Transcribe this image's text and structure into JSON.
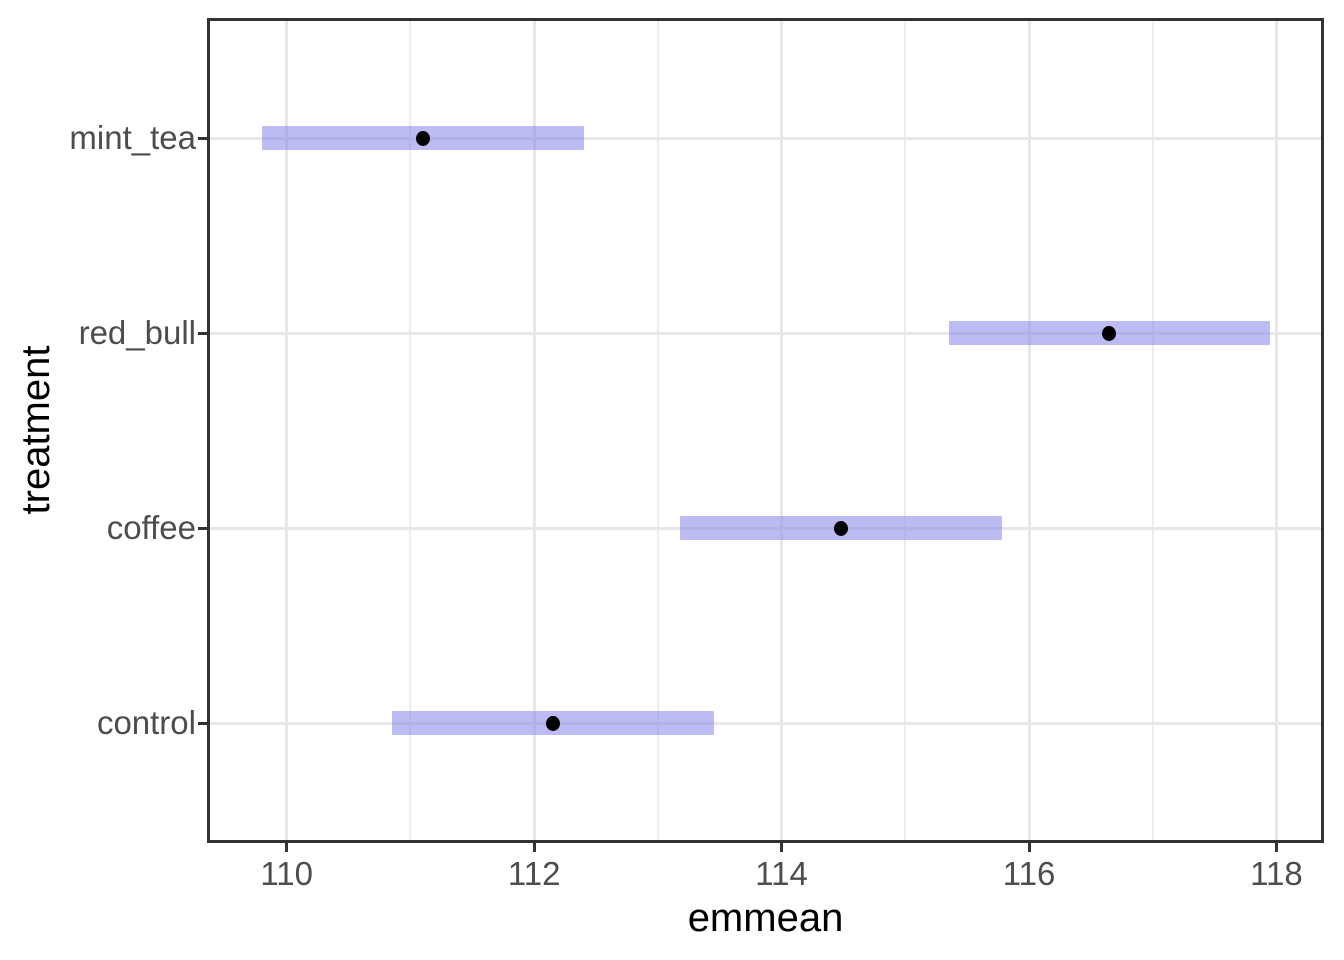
{
  "figure": {
    "background": "#FFFFFF",
    "title": ""
  },
  "colors": {
    "interval_fill": "#8987EB",
    "interval_opacity": 0.57,
    "point_color": "#000000",
    "grid_major": "#E7E7E7",
    "grid_minor": "#EDEDED",
    "panel_border": "#333333",
    "tick_mark": "#333333",
    "tick_label": "#4D4D4D",
    "axis_title": "#000000"
  },
  "chart_data": {
    "type": "interval",
    "subtype": "emmeans-confidence-intervals",
    "orientation": "horizontal",
    "title": "",
    "xlabel": "emmean",
    "ylabel": "treatment",
    "legend": false,
    "grid": true,
    "categories_top_to_bottom": [
      "mint_tea",
      "red_bull",
      "coffee",
      "control"
    ],
    "series": [
      {
        "treatment": "mint_tea",
        "emmean": 111.1,
        "lower_cl": 109.8,
        "upper_cl": 112.4
      },
      {
        "treatment": "red_bull",
        "emmean": 116.65,
        "lower_cl": 115.35,
        "upper_cl": 117.95
      },
      {
        "treatment": "coffee",
        "emmean": 114.48,
        "lower_cl": 113.18,
        "upper_cl": 115.78
      },
      {
        "treatment": "control",
        "emmean": 112.15,
        "lower_cl": 110.85,
        "upper_cl": 113.45
      }
    ],
    "x_axis": {
      "ticks": [
        110,
        112,
        114,
        116,
        118
      ],
      "tick_labels": [
        "110",
        "112",
        "114",
        "116",
        "118"
      ],
      "minor_breaks": [
        111,
        113,
        115,
        117
      ],
      "range": [
        109.38,
        118.36
      ]
    },
    "y_axis": {
      "tick_labels": [
        "mint_tea",
        "red_bull",
        "coffee",
        "control"
      ]
    }
  }
}
